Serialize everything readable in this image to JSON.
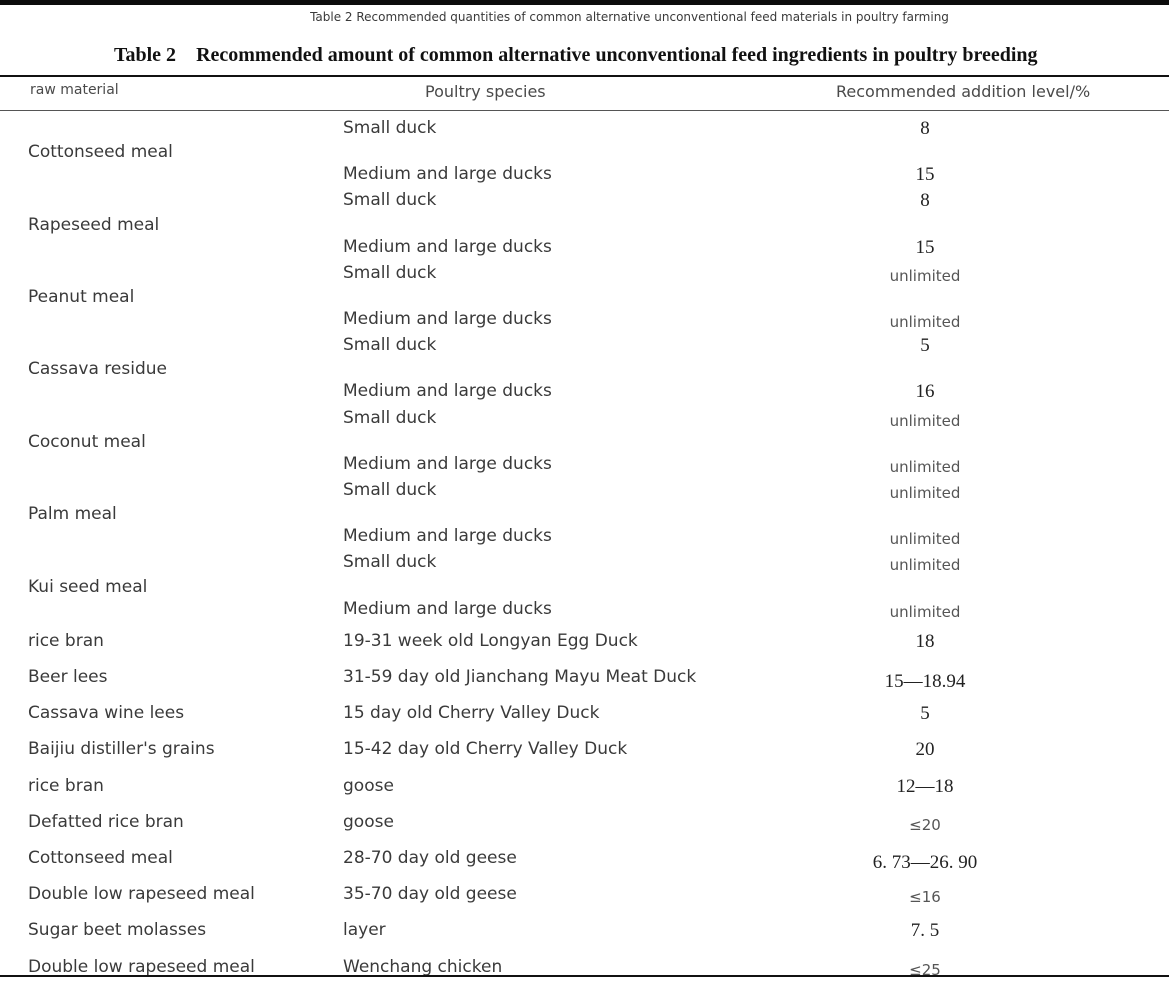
{
  "subtitle": "Table 2 Recommended quantities of common alternative unconventional feed materials in poultry farming",
  "title": {
    "number": "Table 2",
    "text": "Recommended amount of common alternative unconventional feed ingredients in poultry breeding"
  },
  "table": {
    "columns": [
      "raw material",
      "Poultry species",
      "Recommended addition level/%"
    ],
    "grouped": [
      {
        "material": "Cottonseed meal",
        "rows": [
          {
            "species": "Small duck",
            "level": "8"
          },
          {
            "species": "Medium and large ducks",
            "level": "15"
          }
        ]
      },
      {
        "material": "Rapeseed meal",
        "rows": [
          {
            "species": "Small duck",
            "level": "8"
          },
          {
            "species": "Medium and large ducks",
            "level": "15"
          }
        ]
      },
      {
        "material": "Peanut meal",
        "rows": [
          {
            "species": "Small duck",
            "level": "unlimited"
          },
          {
            "species": "Medium and large ducks",
            "level": "unlimited"
          }
        ]
      },
      {
        "material": "Cassava residue",
        "rows": [
          {
            "species": "Small duck",
            "level": "5"
          },
          {
            "species": "Medium and large ducks",
            "level": "16"
          }
        ]
      },
      {
        "material": "Coconut meal",
        "rows": [
          {
            "species": "Small duck",
            "level": "unlimited"
          },
          {
            "species": "Medium and large ducks",
            "level": "unlimited"
          }
        ]
      },
      {
        "material": "Palm meal",
        "rows": [
          {
            "species": "Small duck",
            "level": "unlimited"
          },
          {
            "species": "Medium and large ducks",
            "level": "unlimited"
          }
        ]
      },
      {
        "material": "Kui seed meal",
        "rows": [
          {
            "species": "Small duck",
            "level": "unlimited"
          },
          {
            "species": "Medium and large ducks",
            "level": "unlimited"
          }
        ]
      }
    ],
    "single": [
      {
        "material": "rice bran",
        "species": "19-31 week old Longyan Egg Duck",
        "level": "18"
      },
      {
        "material": "Beer lees",
        "species": "31-59 day old Jianchang Mayu Meat Duck",
        "level": "15—18.94"
      },
      {
        "material": "Cassava wine lees",
        "species": "15 day old Cherry Valley Duck",
        "level": "5"
      },
      {
        "material": "Baijiu distiller's grains",
        "species": "15-42 day old Cherry Valley Duck",
        "level": "20"
      },
      {
        "material": "rice bran",
        "species": "goose",
        "level": "12—18"
      },
      {
        "material": "Defatted rice bran",
        "species": "goose",
        "level": "≤20"
      },
      {
        "material": "Cottonseed meal",
        "species": "28-70 day old geese",
        "level": "6. 73—26. 90"
      },
      {
        "material": "Double low rapeseed meal",
        "species": "35-70 day old geese",
        "level": "≤16"
      },
      {
        "material": "Sugar beet molasses",
        "species": "layer",
        "level": "7. 5"
      },
      {
        "material": "Double low rapeseed meal",
        "species": "Wenchang chicken",
        "level": "≤25"
      }
    ]
  }
}
